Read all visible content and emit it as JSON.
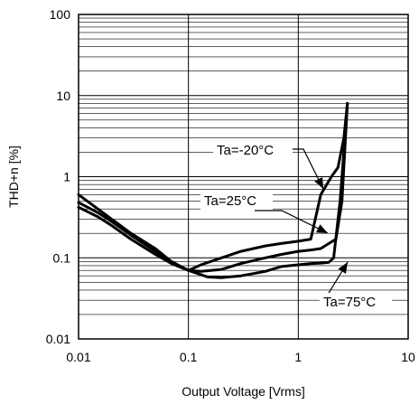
{
  "chart_data": {
    "type": "line",
    "xlabel": "Output Voltage [Vrms]",
    "ylabel": "THD+n [%]",
    "x_scale": "log",
    "y_scale": "log",
    "xlim": [
      0.01,
      10
    ],
    "ylim": [
      0.01,
      100
    ],
    "x_ticks": [
      "0.01",
      "0.1",
      "1",
      "10"
    ],
    "y_ticks": [
      "0.01",
      "0.1",
      "1",
      "10",
      "100"
    ],
    "grid": true,
    "series": [
      {
        "name": "Ta=-20°C",
        "x": [
          0.01,
          0.015,
          0.02,
          0.03,
          0.05,
          0.07,
          0.1,
          0.13,
          0.2,
          0.3,
          0.5,
          0.7,
          1.0,
          1.3,
          1.6,
          2.0,
          2.3,
          2.6,
          2.8
        ],
        "y": [
          0.6,
          0.4,
          0.3,
          0.2,
          0.13,
          0.09,
          0.07,
          0.082,
          0.1,
          0.12,
          0.14,
          0.15,
          0.16,
          0.17,
          0.6,
          1.0,
          1.3,
          3.0,
          8.0
        ]
      },
      {
        "name": "Ta=25°C",
        "x": [
          0.01,
          0.015,
          0.02,
          0.03,
          0.05,
          0.07,
          0.1,
          0.13,
          0.2,
          0.3,
          0.5,
          0.7,
          1.0,
          1.3,
          1.6,
          1.9,
          2.2,
          2.5,
          2.8
        ],
        "y": [
          0.48,
          0.36,
          0.28,
          0.19,
          0.12,
          0.09,
          0.07,
          0.068,
          0.072,
          0.085,
          0.1,
          0.11,
          0.12,
          0.125,
          0.13,
          0.15,
          0.17,
          0.5,
          8.0
        ]
      },
      {
        "name": "Ta=75°C",
        "x": [
          0.01,
          0.015,
          0.02,
          0.03,
          0.05,
          0.07,
          0.1,
          0.13,
          0.15,
          0.2,
          0.3,
          0.5,
          0.7,
          1.0,
          1.3,
          1.6,
          1.9,
          2.1,
          2.4,
          2.6,
          2.8
        ],
        "y": [
          0.42,
          0.32,
          0.25,
          0.17,
          0.11,
          0.085,
          0.07,
          0.062,
          0.058,
          0.057,
          0.06,
          0.068,
          0.078,
          0.082,
          0.085,
          0.086,
          0.088,
          0.1,
          0.5,
          2.0,
          8.0
        ]
      }
    ],
    "annotations": [
      {
        "text": "Ta=-20°C",
        "series": 0
      },
      {
        "text": "Ta=25°C",
        "series": 1
      },
      {
        "text": "Ta=75°C",
        "series": 2
      }
    ]
  }
}
